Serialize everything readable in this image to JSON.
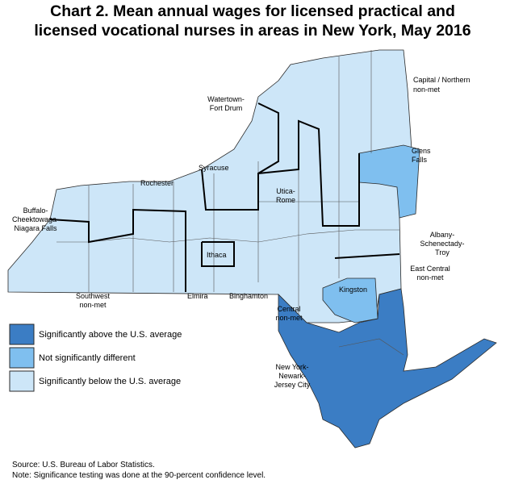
{
  "title": [
    "Chart 2. Mean annual wages for licensed practical and",
    "licensed vocational nurses in areas in New York, May 2016"
  ],
  "areas": [
    {
      "lines": [
        "Capital / Northern",
        "non-met"
      ]
    },
    {
      "lines": [
        "Watertown-",
        "Fort Drum"
      ]
    },
    {
      "lines": [
        "Glens",
        "Falls"
      ]
    },
    {
      "lines": [
        "Syracuse"
      ]
    },
    {
      "lines": [
        "Rochester"
      ]
    },
    {
      "lines": [
        "Utica-",
        "Rome"
      ]
    },
    {
      "lines": [
        "Buffalo-",
        "Cheektowaga-",
        "Niagara Falls"
      ]
    },
    {
      "lines": [
        "Albany-",
        "Schenectady-",
        "Troy"
      ]
    },
    {
      "lines": [
        "Ithaca"
      ]
    },
    {
      "lines": [
        "East Central",
        "non-met"
      ]
    },
    {
      "lines": [
        "Kingston"
      ]
    },
    {
      "lines": [
        "Southwest",
        "non-met"
      ]
    },
    {
      "lines": [
        "Elmira"
      ]
    },
    {
      "lines": [
        "Binghamton"
      ]
    },
    {
      "lines": [
        "Central",
        "non-met"
      ]
    },
    {
      "lines": [
        "New York-",
        "Newark-",
        "Jersey City"
      ]
    }
  ],
  "legend": [
    {
      "label": "Significantly above the U.S. average",
      "color": "#3b7dc4"
    },
    {
      "label": "Not significantly different",
      "color": "#7fbfef"
    },
    {
      "label": "Significantly below the U.S. average",
      "color": "#cde6f8"
    }
  ],
  "source": "Source: U.S. Bureau of Labor Statistics.",
  "note": "Note: Significance testing was done at the 90-percent confidence level."
}
